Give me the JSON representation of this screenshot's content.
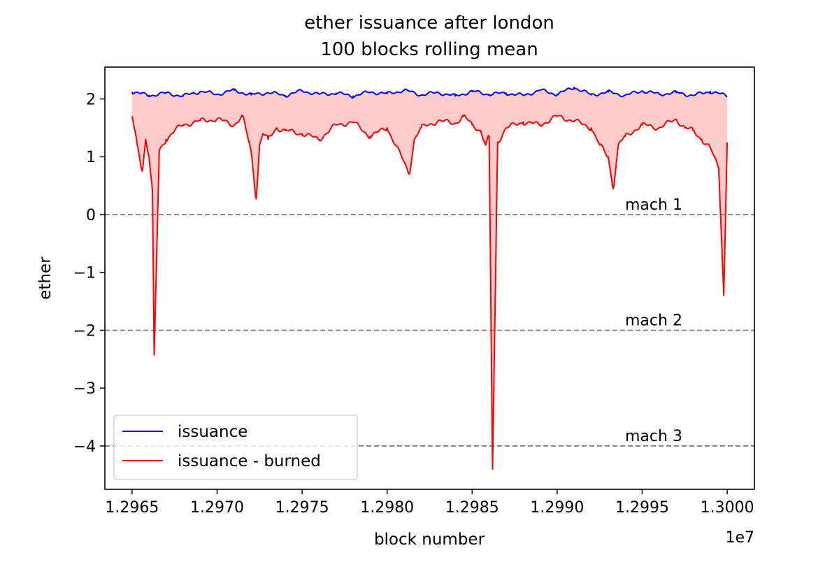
{
  "chart_data": {
    "type": "line",
    "title_lines": [
      "ether issuance after london",
      "100 blocks rolling mean"
    ],
    "xlabel": "block number",
    "ylabel": "ether",
    "x_offset_label": "1e7",
    "xlim": [
      1.29634,
      1.30016
    ],
    "ylim": [
      -4.75,
      2.55
    ],
    "x_ticks": [
      1.2965,
      1.297,
      1.2975,
      1.298,
      1.2985,
      1.299,
      1.2995,
      1.3
    ],
    "x_tick_labels": [
      "1.2965",
      "1.2970",
      "1.2975",
      "1.2980",
      "1.2985",
      "1.2990",
      "1.2995",
      "1.3000"
    ],
    "y_ticks": [
      2,
      1,
      0,
      -1,
      -2,
      -3,
      -4
    ],
    "y_tick_labels": [
      "2",
      "1",
      "0",
      "−1",
      "−2",
      "−3",
      "−4"
    ],
    "grid": false,
    "legend_position": "lower-left",
    "fill_between": {
      "upper": "issuance",
      "lower": "issuance - burned",
      "color": "#ffcccc"
    },
    "hlines": [
      {
        "y": 0,
        "label": "mach 1",
        "color": "#808080",
        "style": "dashed"
      },
      {
        "y": -2,
        "label": "mach 2",
        "color": "#808080",
        "style": "dashed"
      },
      {
        "y": -4,
        "label": "mach 3",
        "color": "#808080",
        "style": "dashed"
      }
    ],
    "series": [
      {
        "name": "issuance",
        "color": "#0000ff",
        "x": [
          1.2965,
          1.2966,
          1.2967,
          1.2968,
          1.2969,
          1.297,
          1.2971,
          1.2972,
          1.2973,
          1.2974,
          1.2975,
          1.2976,
          1.2977,
          1.2978,
          1.2979,
          1.298,
          1.2981,
          1.2982,
          1.2983,
          1.2984,
          1.2985,
          1.2986,
          1.2987,
          1.2988,
          1.2989,
          1.299,
          1.2991,
          1.2992,
          1.2993,
          1.2994,
          1.2995,
          1.2996,
          1.2997,
          1.2998,
          1.2999,
          1.3
        ],
        "y": [
          2.12,
          2.06,
          2.1,
          2.05,
          2.13,
          2.08,
          2.15,
          2.07,
          2.11,
          2.06,
          2.14,
          2.08,
          2.1,
          2.05,
          2.12,
          2.09,
          2.15,
          2.07,
          2.11,
          2.05,
          2.13,
          2.08,
          2.1,
          2.06,
          2.15,
          2.08,
          2.2,
          2.07,
          2.12,
          2.06,
          2.14,
          2.08,
          2.11,
          2.06,
          2.13,
          2.05
        ]
      },
      {
        "name": "issuance - burned",
        "color": "#ff0000",
        "x": [
          1.2965,
          1.29653,
          1.29656,
          1.29658,
          1.2966,
          1.29662,
          1.29663,
          1.29666,
          1.2967,
          1.29675,
          1.2968,
          1.2969,
          1.297,
          1.2971,
          1.29715,
          1.2972,
          1.29723,
          1.29725,
          1.29727,
          1.2973,
          1.29735,
          1.2974,
          1.2975,
          1.2976,
          1.2977,
          1.2978,
          1.2979,
          1.298,
          1.29805,
          1.2981,
          1.29813,
          1.29816,
          1.2982,
          1.2983,
          1.2984,
          1.29845,
          1.2985,
          1.29855,
          1.29858,
          1.2986,
          1.29862,
          1.29865,
          1.2987,
          1.2988,
          1.2989,
          1.299,
          1.2991,
          1.2992,
          1.29925,
          1.2993,
          1.29933,
          1.29936,
          1.2994,
          1.2995,
          1.2996,
          1.2997,
          1.29975,
          1.2998,
          1.29985,
          1.2999,
          1.29995,
          1.29998,
          1.3
        ],
        "y": [
          1.7,
          1.2,
          0.75,
          1.3,
          1.0,
          0.4,
          -2.43,
          1.1,
          1.3,
          1.45,
          1.55,
          1.62,
          1.65,
          1.55,
          1.7,
          1.1,
          0.27,
          1.2,
          1.4,
          1.3,
          1.5,
          1.45,
          1.4,
          1.3,
          1.55,
          1.6,
          1.35,
          1.5,
          1.2,
          0.9,
          0.7,
          1.3,
          1.5,
          1.62,
          1.58,
          1.7,
          1.55,
          1.45,
          1.2,
          1.35,
          -4.4,
          1.25,
          1.5,
          1.6,
          1.55,
          1.7,
          1.62,
          1.5,
          1.2,
          1.0,
          0.45,
          1.2,
          1.35,
          1.55,
          1.5,
          1.65,
          1.5,
          1.45,
          1.3,
          1.15,
          0.8,
          -1.4,
          1.25
        ]
      }
    ]
  }
}
